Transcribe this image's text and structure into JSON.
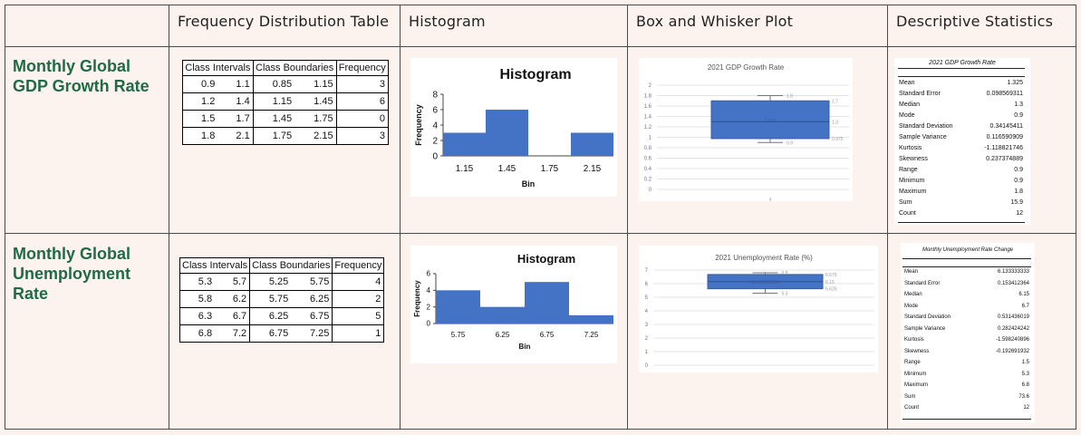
{
  "headers": {
    "freq": "Frequency Distribution Table",
    "hist": "Histogram",
    "box": "Box and Whisker Plot",
    "stats": "Descriptive Statistics"
  },
  "rows": [
    {
      "label_lines": [
        "Monthly Global",
        "GDP Growth Rate"
      ],
      "freq_table": {
        "h_intervals": "Class Intervals",
        "h_boundaries": "Class Boundaries",
        "h_freq": "Frequency",
        "rows": [
          [
            "0.9",
            "1.1",
            "0.85",
            "1.15",
            "3"
          ],
          [
            "1.2",
            "1.4",
            "1.15",
            "1.45",
            "6"
          ],
          [
            "1.5",
            "1.7",
            "1.45",
            "1.75",
            "0"
          ],
          [
            "1.8",
            "2.1",
            "1.75",
            "2.15",
            "3"
          ]
        ]
      },
      "stats": {
        "title": "2021 GDP Growth Rate",
        "items": [
          [
            "Mean",
            "1.325"
          ],
          [
            "Standard Error",
            "0.098569311"
          ],
          [
            "Median",
            "1.3"
          ],
          [
            "Mode",
            "0.9"
          ],
          [
            "Standard Deviation",
            "0.34145411"
          ],
          [
            "Sample Variance",
            "0.116590909"
          ],
          [
            "Kurtosis",
            "-1.118821746"
          ],
          [
            "Skewness",
            "0.237374889"
          ],
          [
            "Range",
            "0.9"
          ],
          [
            "Minimum",
            "0.9"
          ],
          [
            "Maximum",
            "1.8"
          ],
          [
            "Sum",
            "15.9"
          ],
          [
            "Count",
            "12"
          ]
        ]
      }
    },
    {
      "label_lines": [
        "Monthly Global",
        "Unemployment",
        "Rate"
      ],
      "freq_table": {
        "h_intervals": "Class Intervals",
        "h_boundaries": "Class Boundaries",
        "h_freq": "Frequency",
        "rows": [
          [
            "5.3",
            "5.7",
            "5.25",
            "5.75",
            "4"
          ],
          [
            "5.8",
            "6.2",
            "5.75",
            "6.25",
            "2"
          ],
          [
            "6.3",
            "6.7",
            "6.25",
            "6.75",
            "5"
          ],
          [
            "6.8",
            "7.2",
            "6.75",
            "7.25",
            "1"
          ]
        ]
      },
      "stats": {
        "title": "Monthly Unemployment Rate Change",
        "items": [
          [
            "Mean",
            "6.133333333"
          ],
          [
            "Standard Error",
            "0.153412364"
          ],
          [
            "Median",
            "6.15"
          ],
          [
            "Mode",
            "6.7"
          ],
          [
            "Standard Deviation",
            "0.531436019"
          ],
          [
            "Sample Variance",
            "0.282424242"
          ],
          [
            "Kurtosis",
            "-1.598240896"
          ],
          [
            "Skewness",
            "-0.192691932"
          ],
          [
            "Range",
            "1.5"
          ],
          [
            "Minimum",
            "5.3"
          ],
          [
            "Maximum",
            "6.8"
          ],
          [
            "Sum",
            "73.6"
          ],
          [
            "Count",
            "12"
          ]
        ]
      }
    }
  ],
  "chart_data": [
    {
      "type": "bar",
      "title": "Histogram",
      "xlabel": "Bin",
      "ylabel": "Frequency",
      "categories": [
        "1.15",
        "1.45",
        "1.75",
        "2.15"
      ],
      "values": [
        3,
        6,
        0,
        3
      ],
      "yticks": [
        "0",
        "2",
        "4",
        "6",
        "8"
      ],
      "ylim": [
        0,
        8
      ]
    },
    {
      "type": "bar",
      "title": "Histogram",
      "xlabel": "Bin",
      "ylabel": "Frequency",
      "categories": [
        "5.75",
        "6.25",
        "6.75",
        "7.25"
      ],
      "values": [
        4,
        2,
        5,
        1
      ],
      "yticks": [
        "0",
        "2",
        "4",
        "6"
      ],
      "ylim": [
        0,
        6
      ]
    },
    {
      "type": "box",
      "title": "2021 GDP Growth Rate",
      "min": 0.9,
      "q1": 0.975,
      "median": 1.3,
      "q3": 1.7,
      "max": 1.8,
      "mean": 1.325,
      "ylim": [
        0,
        2
      ],
      "yticks": [
        "0",
        "0.2",
        "0.4",
        "0.6",
        "0.8",
        "1",
        "1.2",
        "1.4",
        "1.6",
        "1.8",
        "2"
      ],
      "xticks": [
        "1"
      ],
      "point_labels": {
        "max": "1.8",
        "q3": "1.7",
        "median": "1.3",
        "mean": "1.325",
        "q1": "0.975",
        "min": "0.9"
      }
    },
    {
      "type": "box",
      "title": "2021 Unemployment Rate (%)",
      "min": 5.3,
      "q1": 5.625,
      "median": 6.15,
      "q3": 6.675,
      "max": 6.8,
      "mean": 6.133333333,
      "ylim": [
        0,
        7
      ],
      "yticks": [
        "0",
        "1",
        "2",
        "3",
        "4",
        "5",
        "6",
        "7"
      ],
      "point_labels": {
        "max": "6.8",
        "q3": "6.675",
        "median": "6.15",
        "mean": "6.133333333",
        "q1": "5.625",
        "min": "5.3"
      }
    }
  ],
  "colors": {
    "label_green": "#1f6b45",
    "bar_blue": "#4472c4",
    "background": "#fdf3ee"
  }
}
